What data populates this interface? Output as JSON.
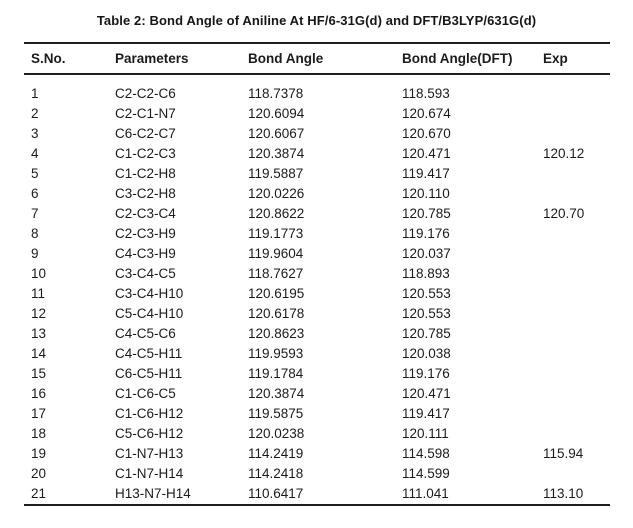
{
  "title": "Table 2: Bond Angle of Aniline At HF/6-31G(d) and DFT/B3LYP/631G(d)",
  "table": {
    "columns": [
      "S.No.",
      "Parameters",
      "Bond Angle",
      "Bond Angle(DFT)",
      "Exp"
    ],
    "rows": [
      {
        "sno": "1",
        "parameter": "C2-C2-C6",
        "bond_angle": "118.7378",
        "bond_angle_dft": "118.593",
        "exp": ""
      },
      {
        "sno": "2",
        "parameter": "C2-C1-N7",
        "bond_angle": "120.6094",
        "bond_angle_dft": "120.674",
        "exp": ""
      },
      {
        "sno": "3",
        "parameter": "C6-C2-C7",
        "bond_angle": "120.6067",
        "bond_angle_dft": "120.670",
        "exp": ""
      },
      {
        "sno": "4",
        "parameter": "C1-C2-C3",
        "bond_angle": "120.3874",
        "bond_angle_dft": "120.471",
        "exp": "120.12"
      },
      {
        "sno": "5",
        "parameter": "C1-C2-H8",
        "bond_angle": "119.5887",
        "bond_angle_dft": "119.417",
        "exp": ""
      },
      {
        "sno": "6",
        "parameter": "C3-C2-H8",
        "bond_angle": "120.0226",
        "bond_angle_dft": "120.110",
        "exp": ""
      },
      {
        "sno": "7",
        "parameter": "C2-C3-C4",
        "bond_angle": "120.8622",
        "bond_angle_dft": "120.785",
        "exp": "120.70"
      },
      {
        "sno": "8",
        "parameter": "C2-C3-H9",
        "bond_angle": "119.1773",
        "bond_angle_dft": "119.176",
        "exp": ""
      },
      {
        "sno": "9",
        "parameter": "C4-C3-H9",
        "bond_angle": "119.9604",
        "bond_angle_dft": "120.037",
        "exp": ""
      },
      {
        "sno": "10",
        "parameter": "C3-C4-C5",
        "bond_angle": "118.7627",
        "bond_angle_dft": "118.893",
        "exp": ""
      },
      {
        "sno": "11",
        "parameter": "C3-C4-H10",
        "bond_angle": "120.6195",
        "bond_angle_dft": "120.553",
        "exp": ""
      },
      {
        "sno": "12",
        "parameter": "C5-C4-H10",
        "bond_angle": "120.6178",
        "bond_angle_dft": "120.553",
        "exp": ""
      },
      {
        "sno": "13",
        "parameter": "C4-C5-C6",
        "bond_angle": "120.8623",
        "bond_angle_dft": "120.785",
        "exp": ""
      },
      {
        "sno": "14",
        "parameter": "C4-C5-H11",
        "bond_angle": "119.9593",
        "bond_angle_dft": "120.038",
        "exp": ""
      },
      {
        "sno": "15",
        "parameter": "C6-C5-H11",
        "bond_angle": "119.1784",
        "bond_angle_dft": "119.176",
        "exp": ""
      },
      {
        "sno": "16",
        "parameter": "C1-C6-C5",
        "bond_angle": "120.3874",
        "bond_angle_dft": "120.471",
        "exp": ""
      },
      {
        "sno": "17",
        "parameter": "C1-C6-H12",
        "bond_angle": "119.5875",
        "bond_angle_dft": "119.417",
        "exp": ""
      },
      {
        "sno": "18",
        "parameter": "C5-C6-H12",
        "bond_angle": "120.0238",
        "bond_angle_dft": "120.111",
        "exp": ""
      },
      {
        "sno": "19",
        "parameter": "C1-N7-H13",
        "bond_angle": "114.2419",
        "bond_angle_dft": "114.598",
        "exp": "115.94"
      },
      {
        "sno": "20",
        "parameter": "C1-N7-H14",
        "bond_angle": "114.2418",
        "bond_angle_dft": "114.599",
        "exp": ""
      },
      {
        "sno": "21",
        "parameter": "H13-N7-H14",
        "bond_angle": "110.6417",
        "bond_angle_dft": "111.041",
        "exp": "113.10"
      }
    ]
  }
}
